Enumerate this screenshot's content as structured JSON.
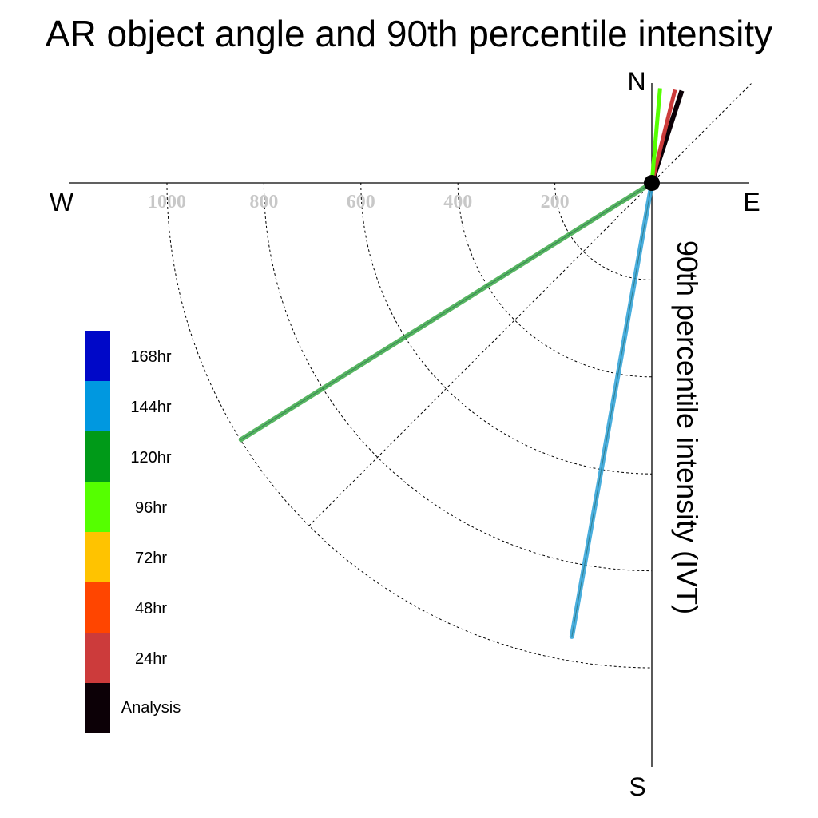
{
  "chart_data": {
    "type": "polar-vector",
    "title": "AR object angle and 90th percentile intensity",
    "ylabel": "90th percentile intensity (IVT)",
    "compass": {
      "north": "N",
      "south": "S",
      "east": "E",
      "west": "W"
    },
    "radial_ticks": [
      200,
      400,
      600,
      800,
      1000
    ],
    "rlim": [
      0,
      1000
    ],
    "legend_position": "left",
    "legend": [
      {
        "label": "168hr",
        "color": "#0008c8"
      },
      {
        "label": "144hr",
        "color": "#0098e0"
      },
      {
        "label": "120hr",
        "color": "#009a18"
      },
      {
        "label": "96hr",
        "color": "#55ff00"
      },
      {
        "label": "72hr",
        "color": "#ffc300"
      },
      {
        "label": "48hr",
        "color": "#ff4500"
      },
      {
        "label": "24hr",
        "color": "#cc3b3b"
      },
      {
        "label": "Analysis",
        "color": "#0c0006"
      }
    ],
    "series": [
      {
        "lead": "Analysis",
        "angle_deg": 18,
        "intensity": 200,
        "color": "#0c0006"
      },
      {
        "lead": "24hr",
        "angle_deg": 14,
        "intensity": 198,
        "color": "#cc3b3b"
      },
      {
        "lead": "96hr",
        "angle_deg": 5,
        "intensity": 196,
        "color": "#55ff00"
      },
      {
        "lead": "120hr",
        "angle_deg": 238,
        "intensity": 999,
        "color": "#3aaa46"
      },
      {
        "lead": "144hr",
        "angle_deg": 190,
        "intensity": 950,
        "color": "#2aa0d8"
      }
    ]
  }
}
